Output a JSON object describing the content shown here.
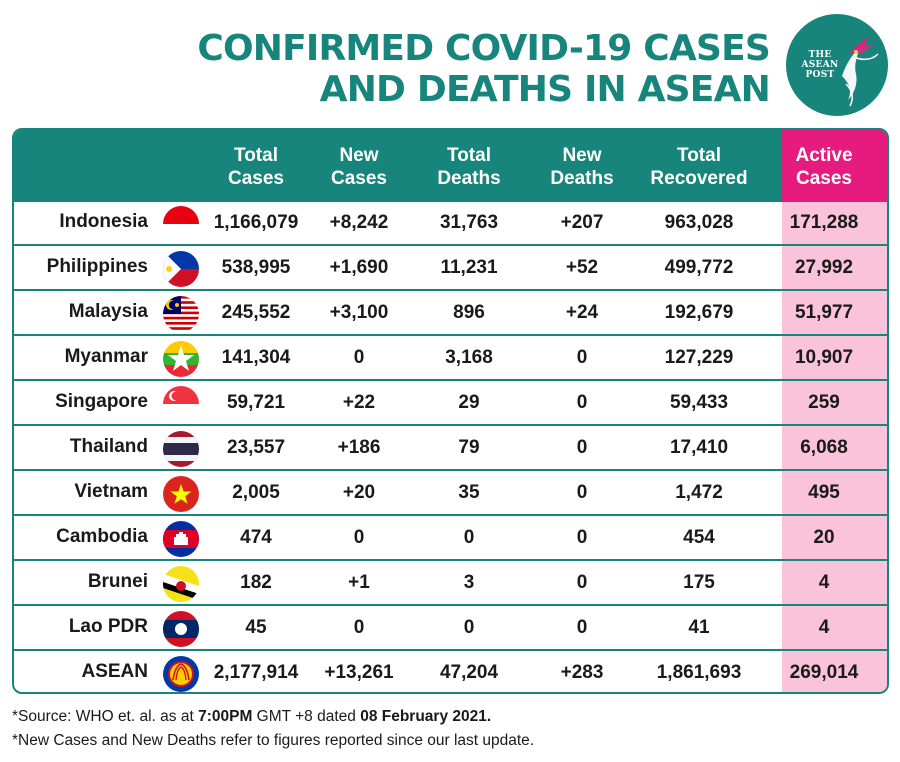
{
  "title_line1": "CONFIRMED COVID-19 CASES",
  "title_line2": "AND DEATHS IN ASEAN",
  "logo": {
    "line1": "THE",
    "line2": "ASEAN",
    "line3": "POST",
    "bg_color": "#17857b"
  },
  "colors": {
    "teal": "#17857b",
    "magenta": "#e51c7e",
    "pink": "#fac3d9"
  },
  "chart_data": {
    "type": "table",
    "columns": [
      "Total\nCases",
      "New\nCases",
      "Total\nDeaths",
      "New\nDeaths",
      "Total\nRecovered",
      "Active\nCases"
    ],
    "rows": [
      {
        "country": "Indonesia",
        "flag": "indonesia-flag-icon",
        "values": [
          "1,166,079",
          "+8,242",
          "31,763",
          "+207",
          "963,028",
          "171,288"
        ]
      },
      {
        "country": "Philippines",
        "flag": "philippines-flag-icon",
        "values": [
          "538,995",
          "+1,690",
          "11,231",
          "+52",
          "499,772",
          "27,992"
        ]
      },
      {
        "country": "Malaysia",
        "flag": "malaysia-flag-icon",
        "values": [
          "245,552",
          "+3,100",
          "896",
          "+24",
          "192,679",
          "51,977"
        ]
      },
      {
        "country": "Myanmar",
        "flag": "myanmar-flag-icon",
        "values": [
          "141,304",
          "0",
          "3,168",
          "0",
          "127,229",
          "10,907"
        ]
      },
      {
        "country": "Singapore",
        "flag": "singapore-flag-icon",
        "values": [
          "59,721",
          "+22",
          "29",
          "0",
          "59,433",
          "259"
        ]
      },
      {
        "country": "Thailand",
        "flag": "thailand-flag-icon",
        "values": [
          "23,557",
          "+186",
          "79",
          "0",
          "17,410",
          "6,068"
        ]
      },
      {
        "country": "Vietnam",
        "flag": "vietnam-flag-icon",
        "values": [
          "2,005",
          "+20",
          "35",
          "0",
          "1,472",
          "495"
        ]
      },
      {
        "country": "Cambodia",
        "flag": "cambodia-flag-icon",
        "values": [
          "474",
          "0",
          "0",
          "0",
          "454",
          "20"
        ]
      },
      {
        "country": "Brunei",
        "flag": "brunei-flag-icon",
        "values": [
          "182",
          "+1",
          "3",
          "0",
          "175",
          "4"
        ]
      },
      {
        "country": "Lao PDR",
        "flag": "laos-flag-icon",
        "values": [
          "45",
          "0",
          "0",
          "0",
          "41",
          "4"
        ]
      },
      {
        "country": "ASEAN",
        "flag": "asean-emblem-icon",
        "values": [
          "2,177,914",
          "+13,261",
          "47,204",
          "+283",
          "1,861,693",
          "269,014"
        ]
      }
    ]
  },
  "footnotes": {
    "source_prefix": "*Source: WHO et. al. as at ",
    "source_time": "7:00PM",
    "source_mid": " GMT +8 dated ",
    "source_date": "08 February 2021.",
    "note": "*New Cases and New Deaths refer to figures reported since our last update."
  }
}
